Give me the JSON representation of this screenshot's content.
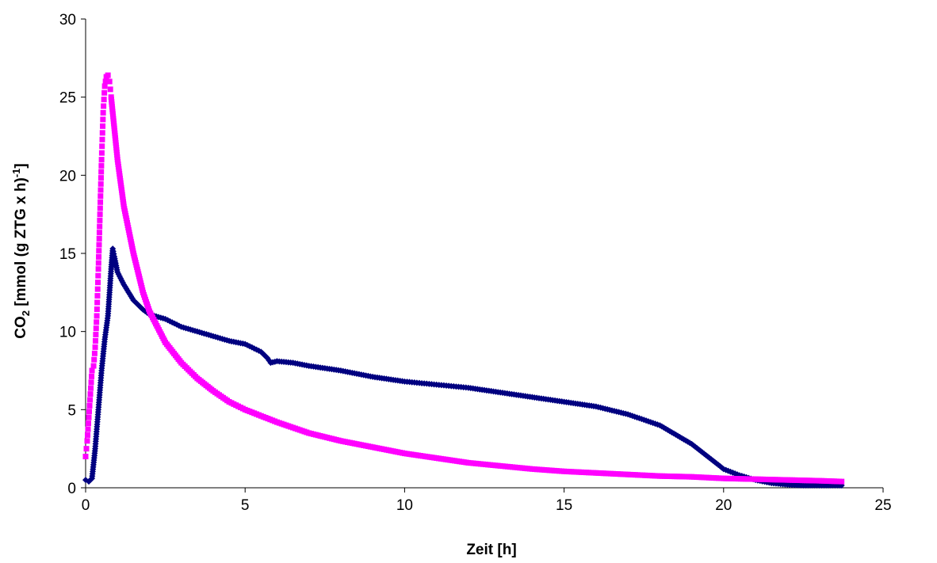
{
  "chart_data": {
    "type": "scatter",
    "title": "",
    "xlabel": "Zeit [h]",
    "ylabel_main": "CO",
    "ylabel_sub": "2",
    "ylabel_mid": " [mmol (g ZTG x h)",
    "ylabel_sup": "-1",
    "ylabel_end": "]",
    "xlim": [
      0,
      25
    ],
    "ylim": [
      0,
      30
    ],
    "x_ticks": [
      0,
      5,
      10,
      15,
      20,
      25
    ],
    "y_ticks": [
      0,
      5,
      10,
      15,
      20,
      25,
      30
    ],
    "grid": false,
    "legend": "none",
    "series": [
      {
        "color": "#000080",
        "marker": "diamond",
        "points": [
          [
            0.0,
            0.5
          ],
          [
            0.1,
            0.4
          ],
          [
            0.2,
            0.6
          ],
          [
            0.3,
            2.5
          ],
          [
            0.4,
            5.0
          ],
          [
            0.5,
            7.5
          ],
          [
            0.6,
            9.5
          ],
          [
            0.7,
            11.0
          ],
          [
            0.75,
            12.5
          ],
          [
            0.8,
            14.0
          ],
          [
            0.85,
            15.3
          ],
          [
            0.9,
            14.8
          ],
          [
            1.0,
            13.8
          ],
          [
            1.2,
            13.0
          ],
          [
            1.5,
            12.0
          ],
          [
            1.8,
            11.4
          ],
          [
            2.0,
            11.1
          ],
          [
            2.5,
            10.8
          ],
          [
            3.0,
            10.3
          ],
          [
            3.5,
            10.0
          ],
          [
            4.0,
            9.7
          ],
          [
            4.5,
            9.4
          ],
          [
            5.0,
            9.2
          ],
          [
            5.5,
            8.7
          ],
          [
            5.7,
            8.3
          ],
          [
            5.8,
            8.0
          ],
          [
            6.0,
            8.1
          ],
          [
            6.5,
            8.0
          ],
          [
            7.0,
            7.8
          ],
          [
            8.0,
            7.5
          ],
          [
            9.0,
            7.1
          ],
          [
            10.0,
            6.8
          ],
          [
            11.0,
            6.6
          ],
          [
            12.0,
            6.4
          ],
          [
            13.0,
            6.1
          ],
          [
            14.0,
            5.8
          ],
          [
            15.0,
            5.5
          ],
          [
            16.0,
            5.2
          ],
          [
            17.0,
            4.7
          ],
          [
            18.0,
            4.0
          ],
          [
            18.5,
            3.4
          ],
          [
            19.0,
            2.8
          ],
          [
            19.5,
            2.0
          ],
          [
            20.0,
            1.2
          ],
          [
            20.5,
            0.8
          ],
          [
            21.0,
            0.5
          ],
          [
            21.5,
            0.3
          ],
          [
            22.0,
            0.2
          ],
          [
            22.5,
            0.15
          ],
          [
            23.0,
            0.15
          ],
          [
            23.5,
            0.15
          ],
          [
            23.7,
            0.15
          ]
        ]
      },
      {
        "color": "#FF00FF",
        "marker": "square",
        "points": [
          [
            0.0,
            2.0
          ],
          [
            0.05,
            3.0
          ],
          [
            0.1,
            4.5
          ],
          [
            0.15,
            6.0
          ],
          [
            0.2,
            7.5
          ],
          [
            0.25,
            7.8
          ],
          [
            0.3,
            9.0
          ],
          [
            0.35,
            11.0
          ],
          [
            0.4,
            14.0
          ],
          [
            0.45,
            17.5
          ],
          [
            0.5,
            21.0
          ],
          [
            0.55,
            24.0
          ],
          [
            0.6,
            25.7
          ],
          [
            0.65,
            26.3
          ],
          [
            0.7,
            26.4
          ],
          [
            0.75,
            26.0
          ],
          [
            0.8,
            25.0
          ],
          [
            0.9,
            23.0
          ],
          [
            1.0,
            21.0
          ],
          [
            1.2,
            18.0
          ],
          [
            1.5,
            15.0
          ],
          [
            1.8,
            12.5
          ],
          [
            2.0,
            11.3
          ],
          [
            2.5,
            9.3
          ],
          [
            3.0,
            8.0
          ],
          [
            3.5,
            7.0
          ],
          [
            4.0,
            6.2
          ],
          [
            4.5,
            5.5
          ],
          [
            5.0,
            5.0
          ],
          [
            6.0,
            4.2
          ],
          [
            7.0,
            3.5
          ],
          [
            8.0,
            3.0
          ],
          [
            9.0,
            2.6
          ],
          [
            10.0,
            2.2
          ],
          [
            11.0,
            1.9
          ],
          [
            12.0,
            1.6
          ],
          [
            13.0,
            1.4
          ],
          [
            14.0,
            1.2
          ],
          [
            15.0,
            1.05
          ],
          [
            16.0,
            0.95
          ],
          [
            17.0,
            0.85
          ],
          [
            18.0,
            0.75
          ],
          [
            19.0,
            0.7
          ],
          [
            20.0,
            0.6
          ],
          [
            21.0,
            0.55
          ],
          [
            22.0,
            0.5
          ],
          [
            23.0,
            0.45
          ],
          [
            23.7,
            0.4
          ]
        ]
      }
    ]
  }
}
